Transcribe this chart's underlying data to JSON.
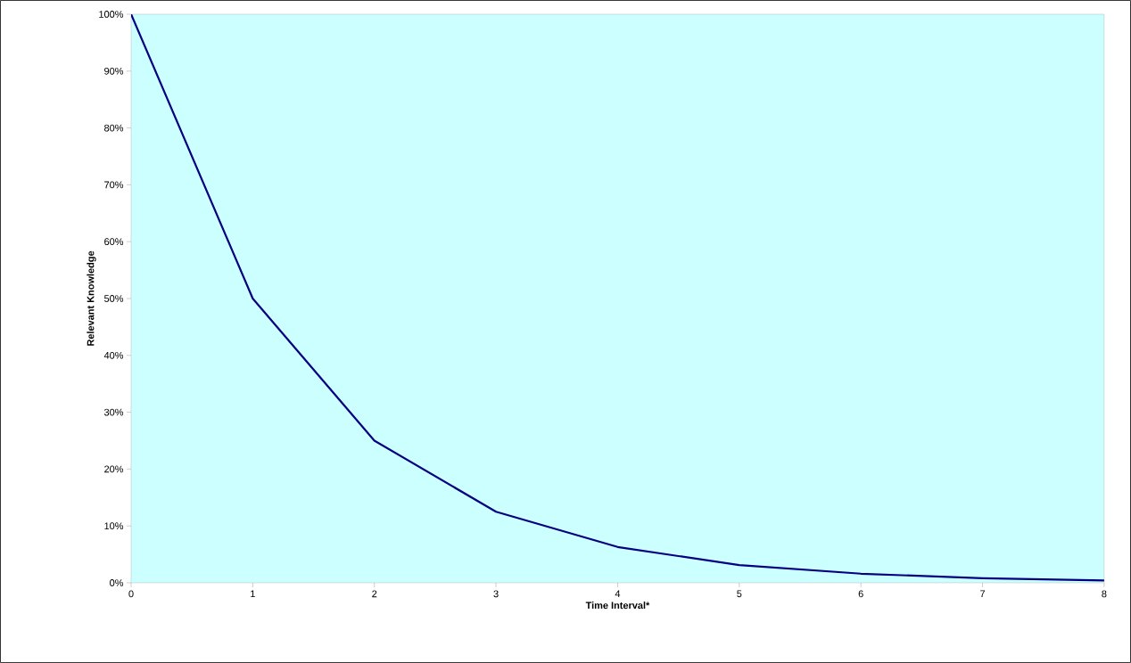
{
  "chart_data": {
    "type": "line",
    "xlabel": "Time Interval*",
    "ylabel": "Relevant Knowledge",
    "x": [
      0,
      1,
      2,
      3,
      4,
      5,
      6,
      7,
      8
    ],
    "series": [
      {
        "color": "#000080",
        "values": [
          100,
          50,
          25,
          12.5,
          6.3,
          3.1,
          1.6,
          0.8,
          0.4
        ]
      }
    ],
    "xlim": [
      0,
      8
    ],
    "xticks": [
      0,
      1,
      2,
      3,
      4,
      5,
      6,
      7,
      8
    ],
    "ylim": [
      0,
      100
    ],
    "yticks": [
      {
        "value": 0,
        "label": "0%"
      },
      {
        "value": 10,
        "label": "10%"
      },
      {
        "value": 20,
        "label": "20%"
      },
      {
        "value": 30,
        "label": "30%"
      },
      {
        "value": 40,
        "label": "40%"
      },
      {
        "value": 50,
        "label": "50%"
      },
      {
        "value": 60,
        "label": "60%"
      },
      {
        "value": 70,
        "label": "70%"
      },
      {
        "value": 80,
        "label": "80%"
      },
      {
        "value": 90,
        "label": "90%"
      },
      {
        "value": 100,
        "label": "100%"
      }
    ],
    "marker": "none",
    "line_style": "solid"
  }
}
